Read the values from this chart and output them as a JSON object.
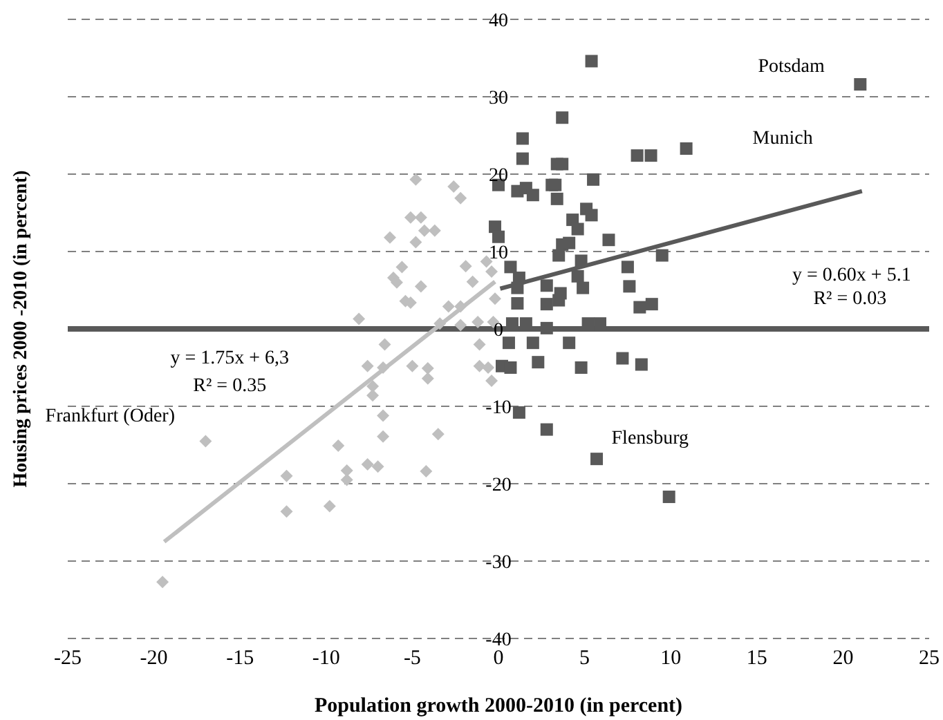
{
  "chart_data": {
    "type": "scatter",
    "xlabel": "Population growth 2000-2010 (in percent)",
    "ylabel": "Housing prices 2000 -2010 (in percent)",
    "xlim": [
      -25,
      25
    ],
    "xticks": [
      -25,
      -20,
      -15,
      -10,
      -5,
      0,
      5,
      10,
      15,
      20,
      25
    ],
    "ylim": [
      -40,
      40
    ],
    "yticks": [
      -40,
      -30,
      -20,
      -10,
      0,
      10,
      20,
      30,
      40
    ],
    "grid": "y",
    "ref_lines": [
      {
        "axis": "y",
        "value": 0,
        "color": "#595959"
      }
    ],
    "series": [
      {
        "marker": "square",
        "color": "#595959",
        "x": [
          5.4,
          21.0,
          10.9,
          8.05,
          8.85,
          1.4,
          1.4,
          3.7,
          3.4,
          3.7,
          0,
          1.1,
          1.6,
          2.0,
          3.1,
          3.3,
          3.4,
          5.5,
          5.1,
          5.4,
          4.3,
          4.6,
          6.4,
          -0.2,
          0,
          3.7,
          4.1,
          3.5,
          9.5,
          7.5,
          0.7,
          1.2,
          4.8,
          4.6,
          4.9,
          7.6,
          2.8,
          3.6,
          1.1,
          1.1,
          2.8,
          3.5,
          8.2,
          8.9,
          0.8,
          1.6,
          5.2,
          5.9,
          2.8,
          0.6,
          2.0,
          4.1,
          7.2,
          0.2,
          0.7,
          2.3,
          4.8,
          8.3,
          1.2,
          2.8,
          5.7,
          9.9
        ],
        "values": [
          34.6,
          31.6,
          23.3,
          22.4,
          22.4,
          24.6,
          22.0,
          27.3,
          21.3,
          21.3,
          18.6,
          17.8,
          18.2,
          17.3,
          18.6,
          18.6,
          16.8,
          19.3,
          15.5,
          14.7,
          14.1,
          12.9,
          11.5,
          13.2,
          11.9,
          10.9,
          11.1,
          9.5,
          9.5,
          8.0,
          8.0,
          6.6,
          8.8,
          6.8,
          5.3,
          5.5,
          5.6,
          4.6,
          5.3,
          3.3,
          3.2,
          3.7,
          2.8,
          3.2,
          0.7,
          0.7,
          0.7,
          0.7,
          0.1,
          -1.8,
          -1.8,
          -1.8,
          -3.8,
          -4.8,
          -5.0,
          -4.3,
          -5.0,
          -4.6,
          -10.8,
          -13.0,
          -16.8,
          -21.7
        ]
      },
      {
        "marker": "diamond",
        "color": "#bfbfbf",
        "x": [
          -5.1,
          -4.5,
          -6.3,
          -4.8,
          -3.7,
          -4.3,
          -5.6,
          -6.1,
          -5.9,
          -4.5,
          -5.4,
          -5.1,
          -1.9,
          -0.7,
          -1.5,
          -0.4,
          -0.2,
          -2.9,
          -2.2,
          -3.4,
          -2.2,
          -1.2,
          -0.3,
          -8.1,
          -6.6,
          -1.1,
          -7.6,
          -6.7,
          -5.0,
          -4.1,
          -4.1,
          -1.1,
          -0.6,
          -0.4,
          -7.3,
          -7.3,
          -6.7,
          -6.7,
          -3.5,
          -9.3,
          -8.8,
          -8.8,
          -7.6,
          -7.0,
          -4.2,
          -12.3,
          -12.3,
          -9.8,
          -17.0,
          -19.5,
          -4.8,
          -2.6,
          -2.2
        ],
        "values": [
          14.4,
          14.4,
          11.8,
          11.2,
          12.7,
          12.7,
          8.0,
          6.6,
          6.0,
          5.5,
          3.6,
          3.4,
          8.1,
          8.7,
          6.1,
          7.4,
          3.9,
          2.9,
          2.9,
          0.7,
          0.5,
          0.9,
          0.9,
          1.3,
          -2.0,
          -2.0,
          -4.8,
          -5.0,
          -4.8,
          -5.1,
          -6.4,
          -4.8,
          -5.0,
          -6.7,
          -7.4,
          -8.6,
          -11.2,
          -13.9,
          -13.6,
          -15.1,
          -18.3,
          -19.5,
          -17.5,
          -17.8,
          -18.4,
          -19.0,
          -23.6,
          -22.9,
          -14.5,
          -32.7,
          19.3,
          18.4,
          16.9
        ]
      },
      {
        "type": "line",
        "color": "#595959",
        "x": [
          0.1,
          21.1
        ],
        "values": [
          5.2,
          17.8
        ]
      },
      {
        "type": "line",
        "color": "#bfbfbf",
        "x": [
          -19.4,
          -0.2
        ],
        "values": [
          -27.5,
          6.1
        ]
      }
    ],
    "annotations": [
      "Potsdam",
      "Munich",
      "Flensburg",
      "Frankfurt (Oder)",
      "y = 0.60x + 5.1",
      "R² = 0.03",
      "y = 1.75x + 6,3",
      "R² = 0.35"
    ]
  }
}
